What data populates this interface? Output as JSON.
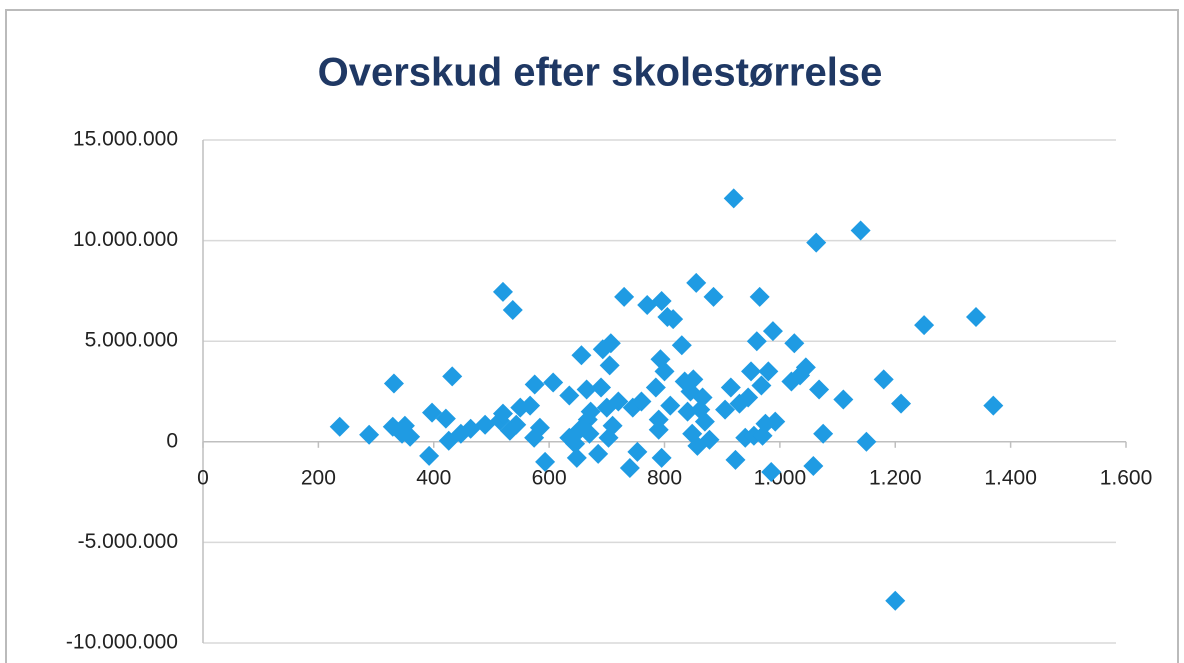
{
  "chart_data": {
    "type": "scatter",
    "title": "Overskud efter skolestørrelse",
    "color": "#1f9be3",
    "grid": true,
    "xlim": [
      0,
      1600
    ],
    "xticks": [
      0,
      200,
      400,
      600,
      800,
      {
        "value": 1000,
        "label": "1.000"
      },
      {
        "value": 1200,
        "label": "1.200"
      },
      {
        "value": 1400,
        "label": "1.400"
      },
      {
        "value": 1600,
        "label": "1.600"
      }
    ],
    "ylim": [
      -10000000,
      15000000
    ],
    "yticks": [
      {
        "value": -10000000,
        "label": "-10.000.000"
      },
      {
        "value": -5000000,
        "label": "-5.000.000"
      },
      0,
      {
        "value": 5000000,
        "label": "5.000.000"
      },
      {
        "value": 10000000,
        "label": "10.000.000"
      },
      {
        "value": 15000000,
        "label": "15.000.000"
      }
    ],
    "x": [
      237,
      288,
      331,
      329,
      350,
      345,
      359,
      392,
      397,
      421,
      432,
      426,
      447,
      464,
      489,
      515,
      520,
      532,
      520,
      537,
      543,
      550,
      567,
      574,
      584,
      593,
      575,
      607,
      635,
      635,
      645,
      648,
      653,
      656,
      665,
      667,
      670,
      672,
      685,
      690,
      693,
      700,
      703,
      705,
      707,
      710,
      720,
      730,
      740,
      745,
      753,
      760,
      770,
      785,
      790,
      790,
      793,
      795,
      800,
      795,
      805,
      810,
      815,
      830,
      835,
      840,
      845,
      848,
      850,
      855,
      857,
      862,
      866,
      870,
      878,
      885,
      905,
      915,
      920,
      923,
      930,
      940,
      945,
      950,
      955,
      960,
      965,
      968,
      970,
      975,
      980,
      985,
      988,
      992,
      1020,
      1025,
      1035,
      1045,
      1058,
      1063,
      1068,
      1075,
      1110,
      1140,
      1150,
      1180,
      1200,
      1210,
      1250,
      1340,
      1370
    ],
    "values": [
      750000,
      350000,
      2900000,
      750000,
      800000,
      400000,
      250000,
      -700000,
      1450000,
      1150000,
      3250000,
      50000,
      400000,
      650000,
      850000,
      1050000,
      1400000,
      550000,
      7450000,
      6550000,
      850000,
      1700000,
      1800000,
      200000,
      700000,
      -1000000,
      2850000,
      2950000,
      2300000,
      200000,
      -100000,
      -800000,
      600000,
      4300000,
      2600000,
      1100000,
      400000,
      1500000,
      -600000,
      2700000,
      4600000,
      1700000,
      200000,
      3800000,
      4900000,
      800000,
      2000000,
      7200000,
      -1300000,
      1700000,
      -500000,
      2000000,
      6800000,
      2700000,
      600000,
      1100000,
      4100000,
      -800000,
      3500000,
      7000000,
      6200000,
      1800000,
      6100000,
      4800000,
      3000000,
      1500000,
      2500000,
      400000,
      3100000,
      7900000,
      -200000,
      1600000,
      2200000,
      1000000,
      100000,
      7200000,
      1600000,
      2700000,
      12100000,
      -900000,
      1900000,
      200000,
      2200000,
      3500000,
      300000,
      5000000,
      7200000,
      2800000,
      300000,
      900000,
      3500000,
      -1500000,
      5500000,
      1000000,
      3000000,
      4900000,
      3300000,
      3700000,
      -1200000,
      9900000,
      2600000,
      400000,
      2100000,
      10500000,
      0,
      3100000,
      -7900000,
      1900000,
      5800000,
      6200000,
      1800000
    ]
  }
}
